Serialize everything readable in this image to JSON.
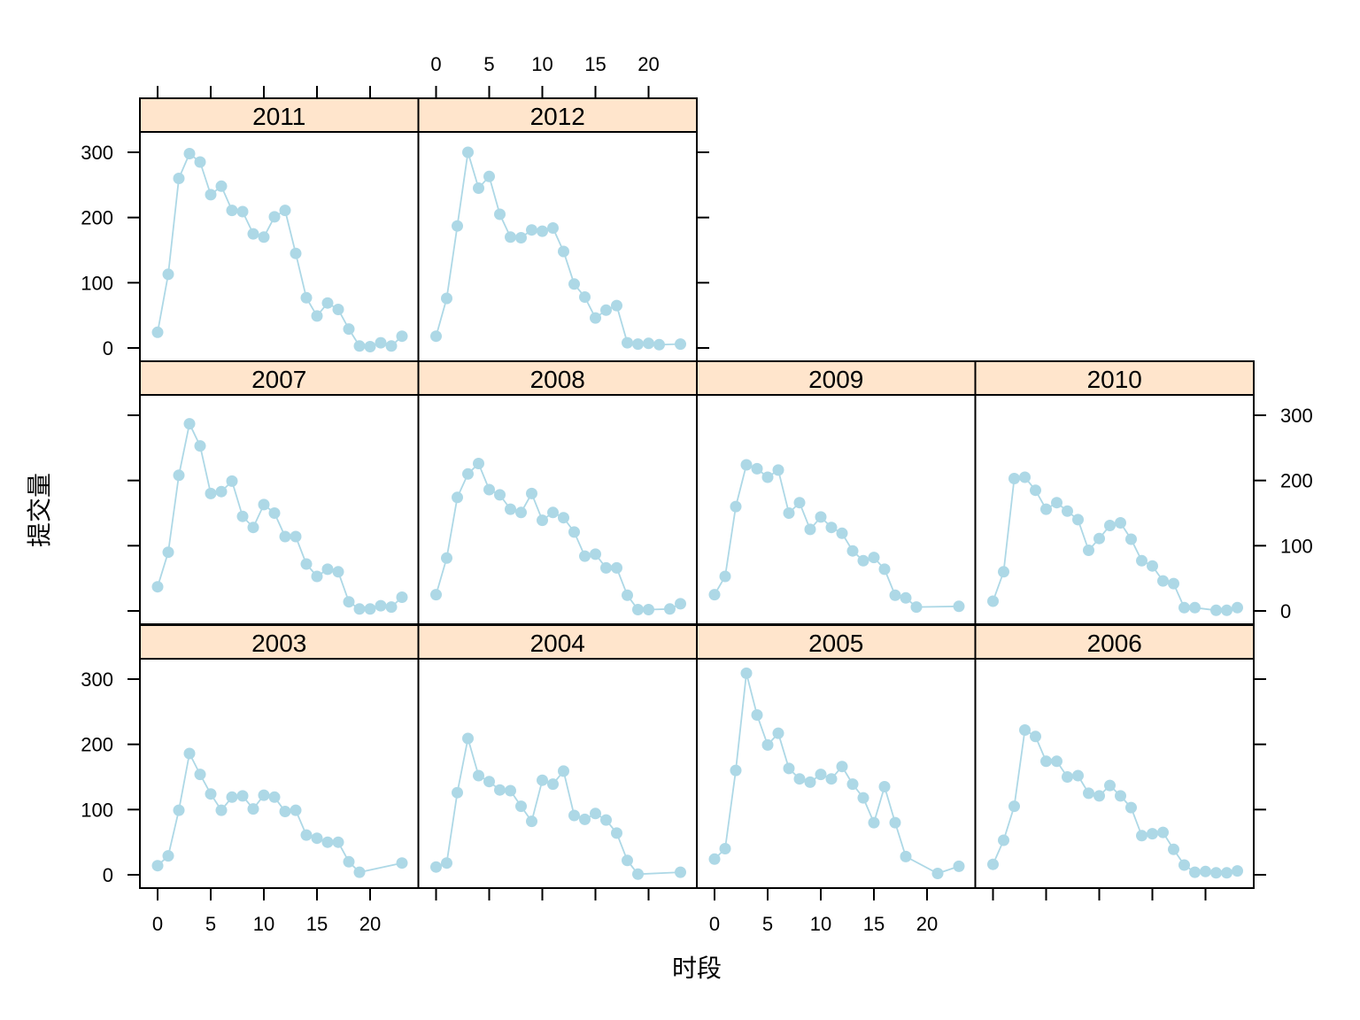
{
  "chart_data": {
    "type": "line",
    "xlabel": "时段",
    "ylabel": "提交量",
    "xlim": [
      -1.5,
      24.5
    ],
    "ylim": [
      -20,
      340
    ],
    "x_ticks": [
      0,
      5,
      10,
      15,
      20
    ],
    "x_tick_labels": [
      "0",
      "5",
      "10",
      "15",
      "20"
    ],
    "y_ticks": [
      0,
      100,
      200,
      300
    ],
    "y_tick_labels": [
      "0",
      "100",
      "200",
      "300"
    ],
    "series_color": "#add8e6",
    "strip_color": "#ffe5cc",
    "panels": [
      {
        "name": "2003",
        "x": [
          0,
          1,
          2,
          3,
          4,
          5,
          6,
          7,
          8,
          9,
          10,
          11,
          12,
          13,
          14,
          15,
          16,
          17,
          18,
          19,
          23
        ],
        "values": [
          14,
          29,
          99,
          186,
          154,
          124,
          99,
          119,
          121,
          101,
          122,
          119,
          97,
          99,
          61,
          56,
          50,
          50,
          20,
          4,
          18
        ]
      },
      {
        "name": "2004",
        "x": [
          0,
          1,
          2,
          3,
          4,
          5,
          6,
          7,
          8,
          9,
          10,
          11,
          12,
          13,
          14,
          15,
          16,
          17,
          18,
          19,
          23
        ],
        "values": [
          12,
          18,
          126,
          209,
          152,
          143,
          130,
          129,
          105,
          82,
          145,
          139,
          159,
          91,
          85,
          94,
          84,
          64,
          22,
          1,
          4
        ]
      },
      {
        "name": "2005",
        "x": [
          0,
          1,
          2,
          3,
          4,
          5,
          6,
          7,
          8,
          9,
          10,
          11,
          12,
          13,
          14,
          15,
          16,
          17,
          18,
          21,
          23
        ],
        "values": [
          24,
          40,
          160,
          309,
          245,
          199,
          217,
          163,
          147,
          142,
          154,
          147,
          166,
          139,
          118,
          80,
          135,
          80,
          28,
          2,
          13
        ]
      },
      {
        "name": "2006",
        "x": [
          0,
          1,
          2,
          3,
          4,
          5,
          6,
          7,
          8,
          9,
          10,
          11,
          12,
          13,
          14,
          15,
          16,
          17,
          18,
          19,
          20,
          21,
          22,
          23
        ],
        "values": [
          16,
          53,
          105,
          222,
          212,
          174,
          174,
          150,
          152,
          125,
          121,
          137,
          121,
          103,
          60,
          63,
          65,
          39,
          15,
          4,
          5,
          3,
          3,
          6
        ]
      },
      {
        "name": "2007",
        "x": [
          0,
          1,
          2,
          3,
          4,
          5,
          6,
          7,
          8,
          9,
          10,
          11,
          12,
          13,
          14,
          15,
          16,
          17,
          18,
          19,
          20,
          21,
          22,
          23
        ],
        "values": [
          37,
          90,
          208,
          287,
          253,
          180,
          183,
          199,
          145,
          128,
          163,
          150,
          114,
          114,
          72,
          53,
          64,
          60,
          14,
          3,
          3,
          8,
          6,
          21
        ]
      },
      {
        "name": "2008",
        "x": [
          0,
          1,
          2,
          3,
          4,
          5,
          6,
          7,
          8,
          9,
          10,
          11,
          12,
          13,
          14,
          15,
          16,
          17,
          18,
          19,
          20,
          22,
          23
        ],
        "values": [
          25,
          81,
          174,
          210,
          226,
          186,
          178,
          156,
          151,
          180,
          139,
          151,
          143,
          121,
          84,
          87,
          66,
          66,
          24,
          2,
          2,
          3,
          11
        ]
      },
      {
        "name": "2009",
        "x": [
          0,
          1,
          2,
          3,
          4,
          5,
          6,
          7,
          8,
          9,
          10,
          11,
          12,
          13,
          14,
          15,
          16,
          17,
          18,
          19,
          23
        ],
        "values": [
          25,
          53,
          160,
          224,
          218,
          205,
          216,
          150,
          166,
          125,
          144,
          128,
          119,
          92,
          77,
          82,
          64,
          24,
          20,
          6,
          7
        ]
      },
      {
        "name": "2010",
        "x": [
          0,
          1,
          2,
          3,
          4,
          5,
          6,
          7,
          8,
          9,
          10,
          11,
          12,
          13,
          14,
          15,
          16,
          17,
          18,
          19,
          21,
          22,
          23
        ],
        "values": [
          15,
          60,
          203,
          205,
          185,
          156,
          166,
          153,
          140,
          93,
          111,
          131,
          135,
          110,
          77,
          69,
          46,
          42,
          5,
          5,
          1,
          1,
          5
        ]
      },
      {
        "name": "2011",
        "x": [
          0,
          1,
          2,
          3,
          4,
          5,
          6,
          7,
          8,
          9,
          10,
          11,
          12,
          13,
          14,
          15,
          16,
          17,
          18,
          19,
          20,
          21,
          22,
          23
        ],
        "values": [
          24,
          113,
          260,
          298,
          285,
          235,
          248,
          211,
          209,
          175,
          170,
          201,
          211,
          145,
          77,
          49,
          69,
          59,
          29,
          3,
          2,
          8,
          3,
          18
        ]
      },
      {
        "name": "2012",
        "x": [
          0,
          1,
          2,
          3,
          4,
          5,
          6,
          7,
          8,
          9,
          10,
          11,
          12,
          13,
          14,
          15,
          16,
          17,
          18,
          19,
          20,
          21,
          23
        ],
        "values": [
          18,
          76,
          187,
          300,
          245,
          263,
          205,
          170,
          169,
          181,
          179,
          184,
          148,
          98,
          78,
          46,
          58,
          65,
          8,
          6,
          7,
          5,
          6
        ]
      }
    ]
  }
}
